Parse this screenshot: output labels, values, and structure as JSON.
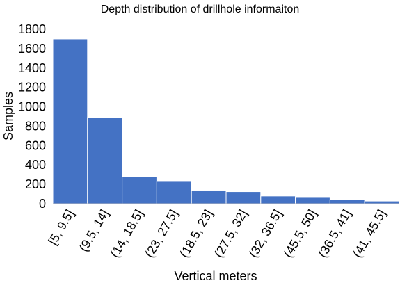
{
  "chart_data": {
    "type": "bar",
    "title": "Depth distribution of drillhole informaiton",
    "xlabel": "Vertical meters",
    "ylabel": "Samples",
    "categories": [
      "[5, 9.5]",
      "(9.5, 14]",
      "(14, 18.5]",
      "(23, 27.5]",
      "(18.5, 23]",
      "(27.5, 32]",
      "(32, 36.5]",
      "(45.5, 50]",
      "(36.5, 41]",
      "(41, 45.5]"
    ],
    "values": [
      1700,
      890,
      280,
      230,
      140,
      125,
      80,
      65,
      40,
      28
    ],
    "ylim": [
      0,
      1800
    ],
    "yticks": [
      0,
      200,
      400,
      600,
      800,
      1000,
      1200,
      1400,
      1600,
      1800
    ],
    "grid": false,
    "legend": "none",
    "colors": {
      "bar": "#4472C4",
      "axis": "#bfbfbf"
    }
  }
}
